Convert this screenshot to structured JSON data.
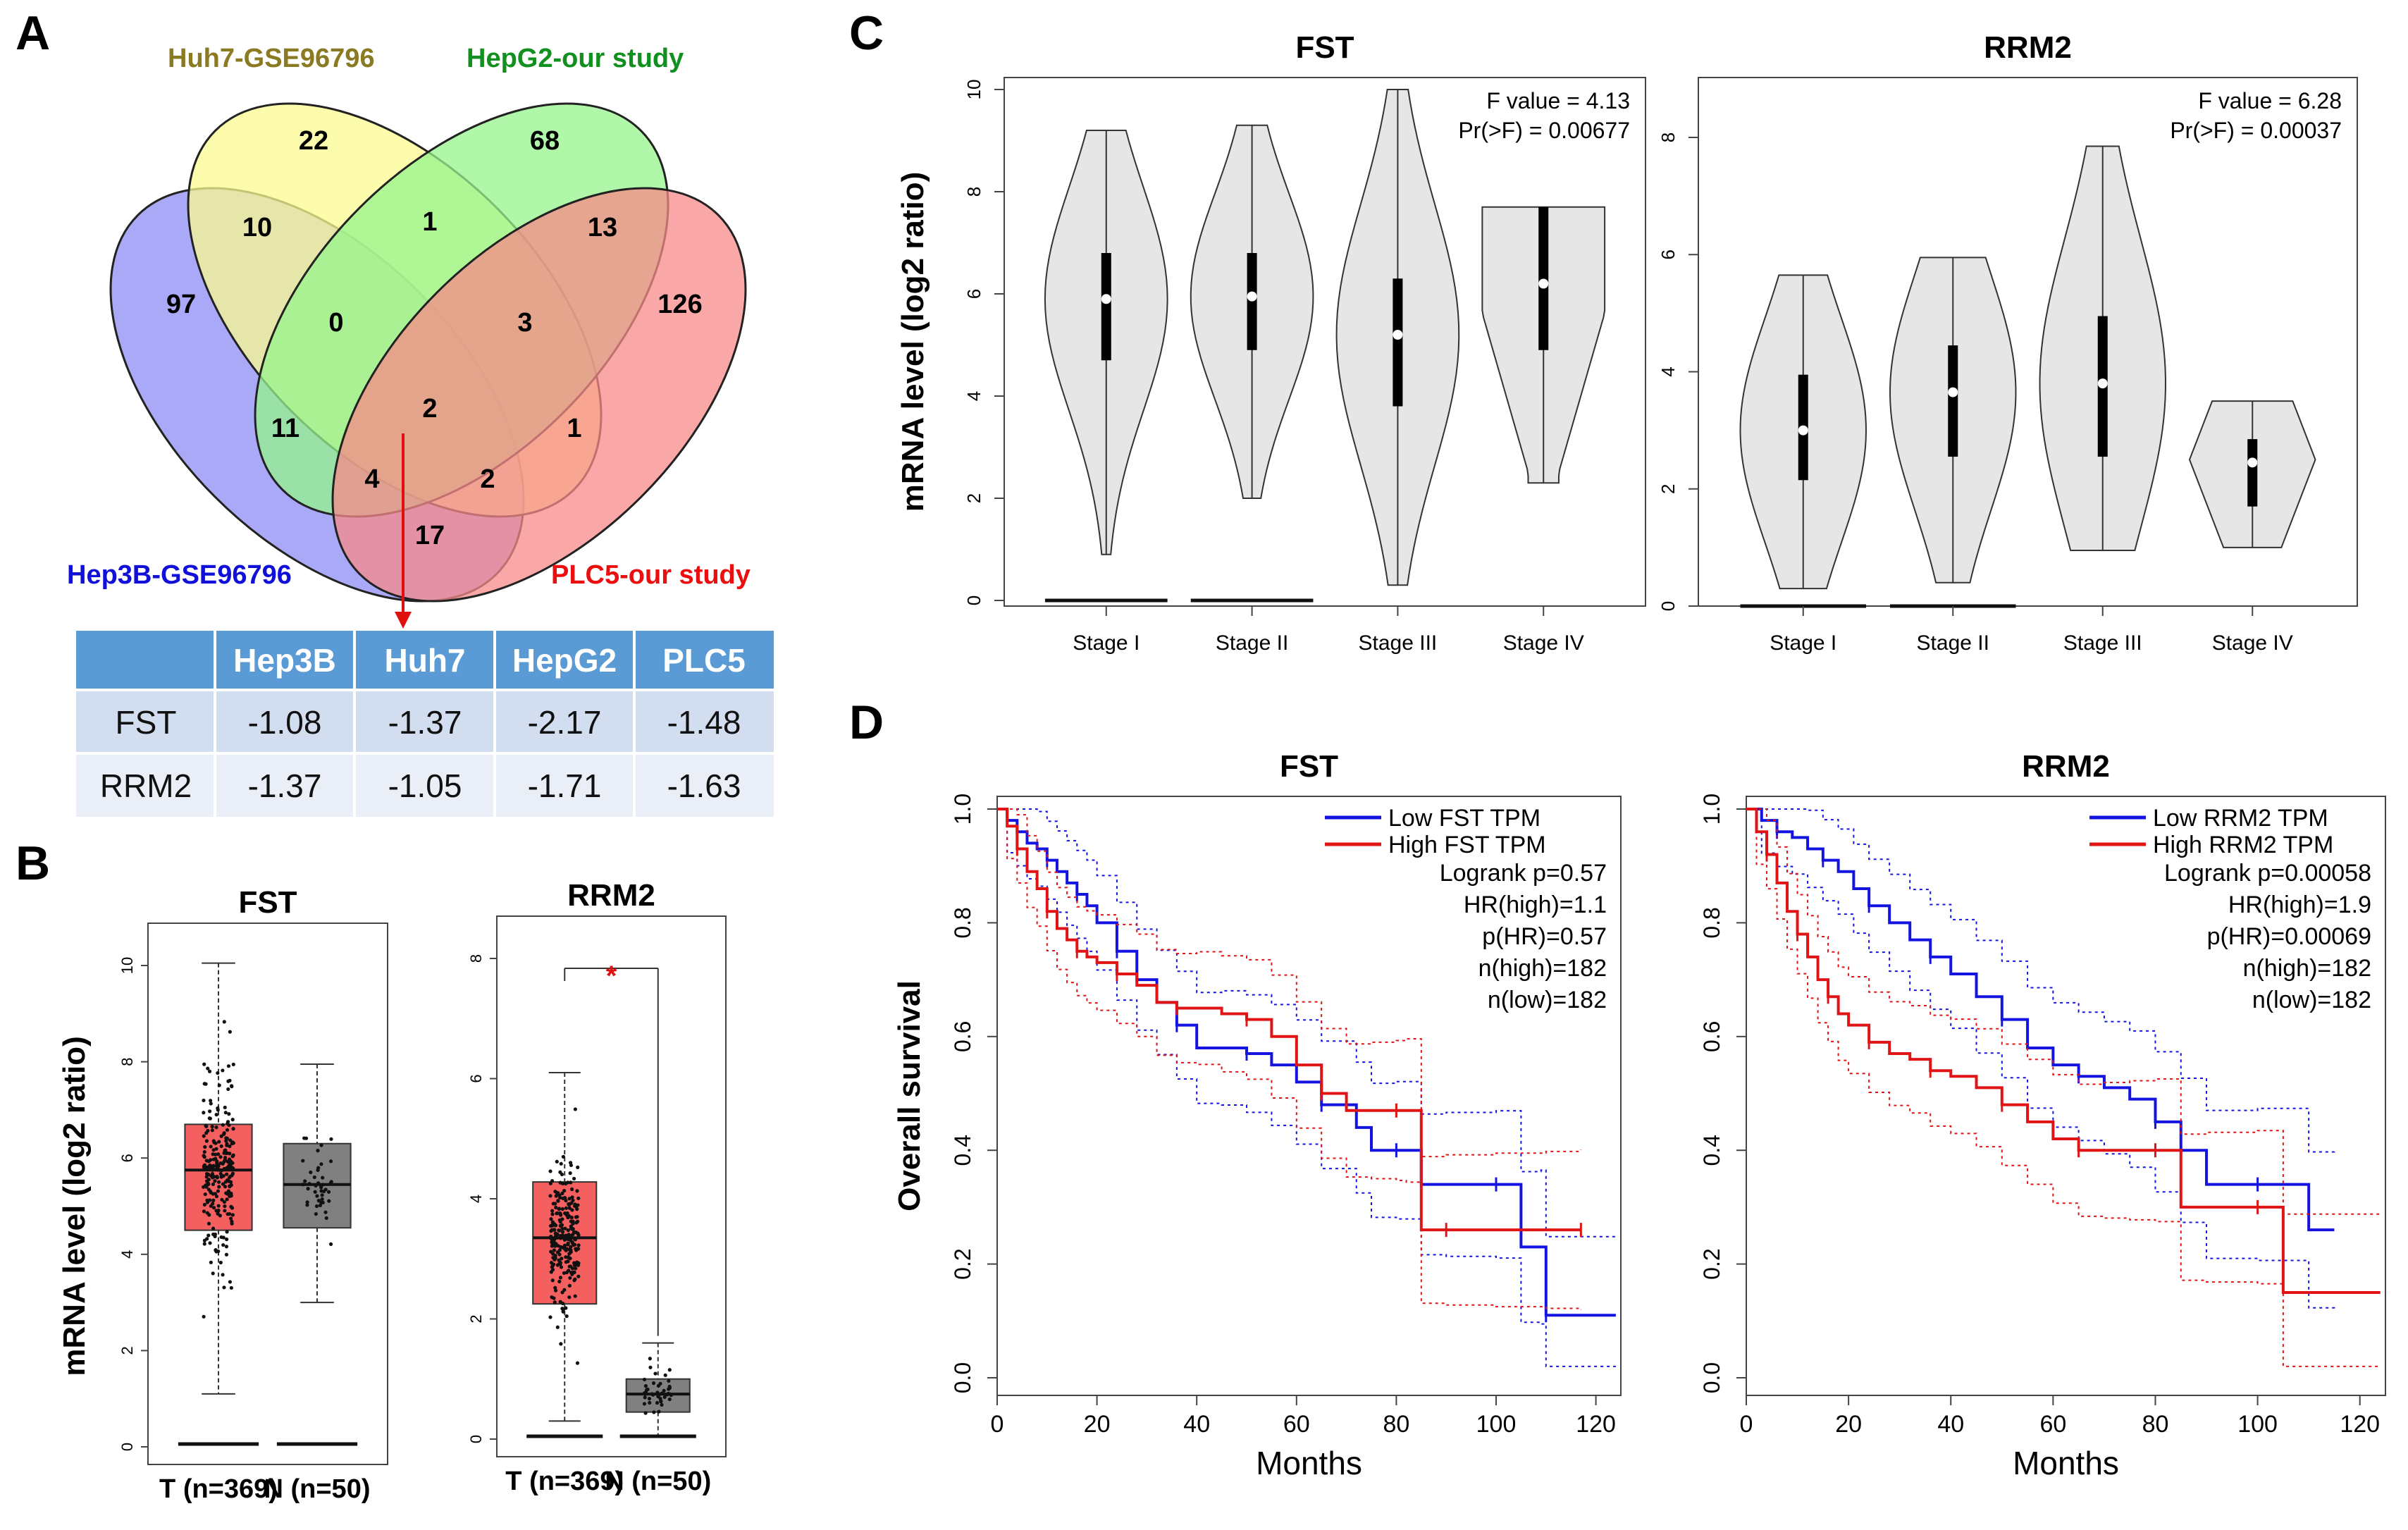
{
  "panels": {
    "a": "A",
    "b": "B",
    "c": "C",
    "d": "D"
  },
  "venn": {
    "sets": [
      {
        "name": "Hep3B-GSE96796",
        "color": "#1010d8",
        "fill": "#8c8cf4"
      },
      {
        "name": "Huh7-GSE96796",
        "color": "#8a7a22",
        "fill": "#fbfb90"
      },
      {
        "name": "HepG2-our study",
        "color": "#12901f",
        "fill": "#96f48c"
      },
      {
        "name": "PLC5-our study",
        "color": "#ea0e0e",
        "fill": "#f78a8a"
      }
    ],
    "counts": {
      "v1": "22",
      "v2": "68",
      "v3": "10",
      "v4": "1",
      "v5": "13",
      "v6": "97",
      "v7": "0",
      "v8": "3",
      "v9": "126",
      "v10": "11",
      "v11": "2",
      "v12": "1",
      "v13": "4",
      "v14": "2",
      "v15": "17"
    }
  },
  "table": {
    "headers": [
      "",
      "Hep3B",
      "Huh7",
      "HepG2",
      "PLC5"
    ],
    "rows": [
      [
        "FST",
        "-1.08",
        "-1.37",
        "-2.17",
        "-1.48"
      ],
      [
        "RRM2",
        "-1.37",
        "-1.05",
        "-1.71",
        "-1.63"
      ]
    ]
  },
  "chart_data": [
    {
      "id": "B-FST",
      "type": "box",
      "title": "FST",
      "ylabel": "mRNA level (log2 ratio)",
      "ylim": [
        0,
        10
      ],
      "yticks": [
        "0",
        "2",
        "4",
        "6",
        "8",
        "10"
      ],
      "categories": [
        "T (n=369)",
        "N (n=50)"
      ],
      "boxes": [
        {
          "name": "T",
          "min": 1.1,
          "q1": 4.5,
          "median": 5.75,
          "q3": 6.7,
          "max": 10.05,
          "color": "#f46060"
        },
        {
          "name": "N",
          "min": 3.0,
          "q1": 4.55,
          "median": 5.45,
          "q3": 6.3,
          "max": 7.95,
          "color": "#808080"
        }
      ]
    },
    {
      "id": "B-RRM2",
      "type": "box",
      "title": "RRM2",
      "ylim": [
        0,
        8
      ],
      "yticks": [
        "0",
        "2",
        "4",
        "6",
        "8"
      ],
      "categories": [
        "T (n=369)",
        "N (n=50)"
      ],
      "annotation": "*",
      "boxes": [
        {
          "name": "T",
          "min": 0.3,
          "q1": 2.25,
          "median": 3.35,
          "q3": 4.28,
          "max": 6.1,
          "color": "#f46060"
        },
        {
          "name": "N",
          "min": 0.05,
          "q1": 0.45,
          "median": 0.75,
          "q3": 1.0,
          "max": 1.6,
          "color": "#808080"
        }
      ]
    },
    {
      "id": "C-FST",
      "type": "violin",
      "title": "FST",
      "ylabel": "mRNA level (log2 ratio)",
      "ylim": [
        0,
        10
      ],
      "yticks": [
        "0",
        "2",
        "4",
        "6",
        "8",
        "10"
      ],
      "categories": [
        "Stage I",
        "Stage II",
        "Stage III",
        "Stage IV"
      ],
      "stats": [
        "F value = 4.13",
        "Pr(>F) = 0.00677"
      ],
      "violins": [
        {
          "min": 0.9,
          "max": 9.2,
          "q1": 4.7,
          "median": 5.9,
          "q3": 6.8
        },
        {
          "min": 2.0,
          "max": 9.3,
          "q1": 4.9,
          "median": 5.95,
          "q3": 6.8
        },
        {
          "min": 0.3,
          "max": 10.0,
          "q1": 3.8,
          "median": 5.2,
          "q3": 6.3
        },
        {
          "min": 2.3,
          "max": 7.7,
          "q1": 4.9,
          "median": 6.2,
          "q3": 7.7
        }
      ]
    },
    {
      "id": "C-RRM2",
      "type": "violin",
      "title": "RRM2",
      "ylim": [
        0,
        8
      ],
      "yticks": [
        "0",
        "2",
        "4",
        "6",
        "8"
      ],
      "categories": [
        "Stage I",
        "Stage II",
        "Stage III",
        "Stage IV"
      ],
      "stats": [
        "F value = 6.28",
        "Pr(>F) = 0.00037"
      ],
      "violins": [
        {
          "min": 0.3,
          "max": 5.65,
          "q1": 2.15,
          "median": 3.0,
          "q3": 3.95
        },
        {
          "min": 0.4,
          "max": 5.95,
          "q1": 2.55,
          "median": 3.65,
          "q3": 4.45
        },
        {
          "min": 0.95,
          "max": 7.85,
          "q1": 2.55,
          "median": 3.8,
          "q3": 4.95
        },
        {
          "min": 1.0,
          "max": 3.5,
          "q1": 1.7,
          "median": 2.45,
          "q3": 2.85
        }
      ]
    },
    {
      "id": "D-FST",
      "type": "line",
      "title": "FST",
      "ylabel": "Overall survival",
      "xlabel": "Months",
      "xlim": [
        0,
        125
      ],
      "ylim": [
        0,
        1
      ],
      "xticks": [
        "0",
        "20",
        "40",
        "60",
        "80",
        "100",
        "120"
      ],
      "yticks": [
        "0.0",
        "0.2",
        "0.4",
        "0.6",
        "0.8",
        "1.0"
      ],
      "legend": [
        "Low FST TPM",
        "High FST TPM"
      ],
      "stats": [
        "Logrank p=0.57",
        "HR(high)=1.1",
        "p(HR)=0.57",
        "n(high)=182",
        "n(low)=182"
      ],
      "series": [
        {
          "name": "Low FST TPM",
          "color": "#1414e0",
          "x": [
            0,
            2,
            4,
            6,
            8,
            10,
            12,
            14,
            16,
            18,
            20,
            24,
            28,
            32,
            36,
            40,
            45,
            50,
            55,
            60,
            65,
            72,
            75,
            80,
            85,
            90,
            100,
            105,
            109,
            110,
            124
          ],
          "y": [
            1.0,
            0.98,
            0.96,
            0.94,
            0.93,
            0.91,
            0.89,
            0.87,
            0.85,
            0.83,
            0.8,
            0.75,
            0.7,
            0.66,
            0.62,
            0.58,
            0.58,
            0.57,
            0.55,
            0.52,
            0.48,
            0.44,
            0.4,
            0.4,
            0.34,
            0.34,
            0.34,
            0.23,
            0.23,
            0.11,
            0.11
          ]
        },
        {
          "name": "High FST TPM",
          "color": "#e01414",
          "x": [
            0,
            2,
            4,
            6,
            8,
            10,
            12,
            14,
            16,
            18,
            20,
            24,
            28,
            32,
            36,
            40,
            45,
            50,
            55,
            60,
            65,
            70,
            75,
            80,
            82,
            85,
            90,
            100,
            110,
            117
          ],
          "y": [
            1.0,
            0.97,
            0.93,
            0.89,
            0.86,
            0.82,
            0.79,
            0.77,
            0.75,
            0.74,
            0.73,
            0.71,
            0.69,
            0.66,
            0.65,
            0.65,
            0.64,
            0.63,
            0.6,
            0.55,
            0.5,
            0.47,
            0.47,
            0.47,
            0.47,
            0.26,
            0.26,
            0.26,
            0.26,
            0.26
          ]
        }
      ]
    },
    {
      "id": "D-RRM2",
      "type": "line",
      "title": "RRM2",
      "xlabel": "Months",
      "xlim": [
        0,
        125
      ],
      "ylim": [
        0,
        1
      ],
      "xticks": [
        "0",
        "20",
        "40",
        "60",
        "80",
        "100",
        "120"
      ],
      "yticks": [
        "0.0",
        "0.2",
        "0.4",
        "0.6",
        "0.8",
        "1.0"
      ],
      "legend": [
        "Low RRM2 TPM",
        "High RRM2 TPM"
      ],
      "stats": [
        "Logrank p=0.00058",
        "HR(high)=1.9",
        "p(HR)=0.00069",
        "n(high)=182",
        "n(low)=182"
      ],
      "series": [
        {
          "name": "Low RRM2 TPM",
          "color": "#1414e0",
          "x": [
            0,
            3,
            6,
            9,
            12,
            15,
            18,
            21,
            24,
            28,
            32,
            36,
            40,
            45,
            50,
            55,
            60,
            65,
            70,
            75,
            80,
            85,
            90,
            100,
            110,
            115
          ],
          "y": [
            1.0,
            0.98,
            0.96,
            0.95,
            0.93,
            0.91,
            0.89,
            0.86,
            0.83,
            0.8,
            0.77,
            0.74,
            0.71,
            0.67,
            0.63,
            0.58,
            0.55,
            0.53,
            0.51,
            0.49,
            0.45,
            0.4,
            0.34,
            0.34,
            0.26,
            0.26
          ]
        },
        {
          "name": "High RRM2 TPM",
          "color": "#e01414",
          "x": [
            0,
            2,
            4,
            6,
            8,
            10,
            12,
            14,
            16,
            18,
            20,
            24,
            28,
            32,
            36,
            40,
            45,
            50,
            55,
            60,
            65,
            70,
            75,
            80,
            85,
            90,
            100,
            105,
            124
          ],
          "y": [
            1.0,
            0.96,
            0.92,
            0.87,
            0.82,
            0.78,
            0.74,
            0.7,
            0.67,
            0.64,
            0.62,
            0.59,
            0.57,
            0.56,
            0.54,
            0.53,
            0.51,
            0.48,
            0.45,
            0.42,
            0.4,
            0.4,
            0.4,
            0.4,
            0.3,
            0.3,
            0.3,
            0.15,
            0.15
          ]
        }
      ]
    }
  ]
}
